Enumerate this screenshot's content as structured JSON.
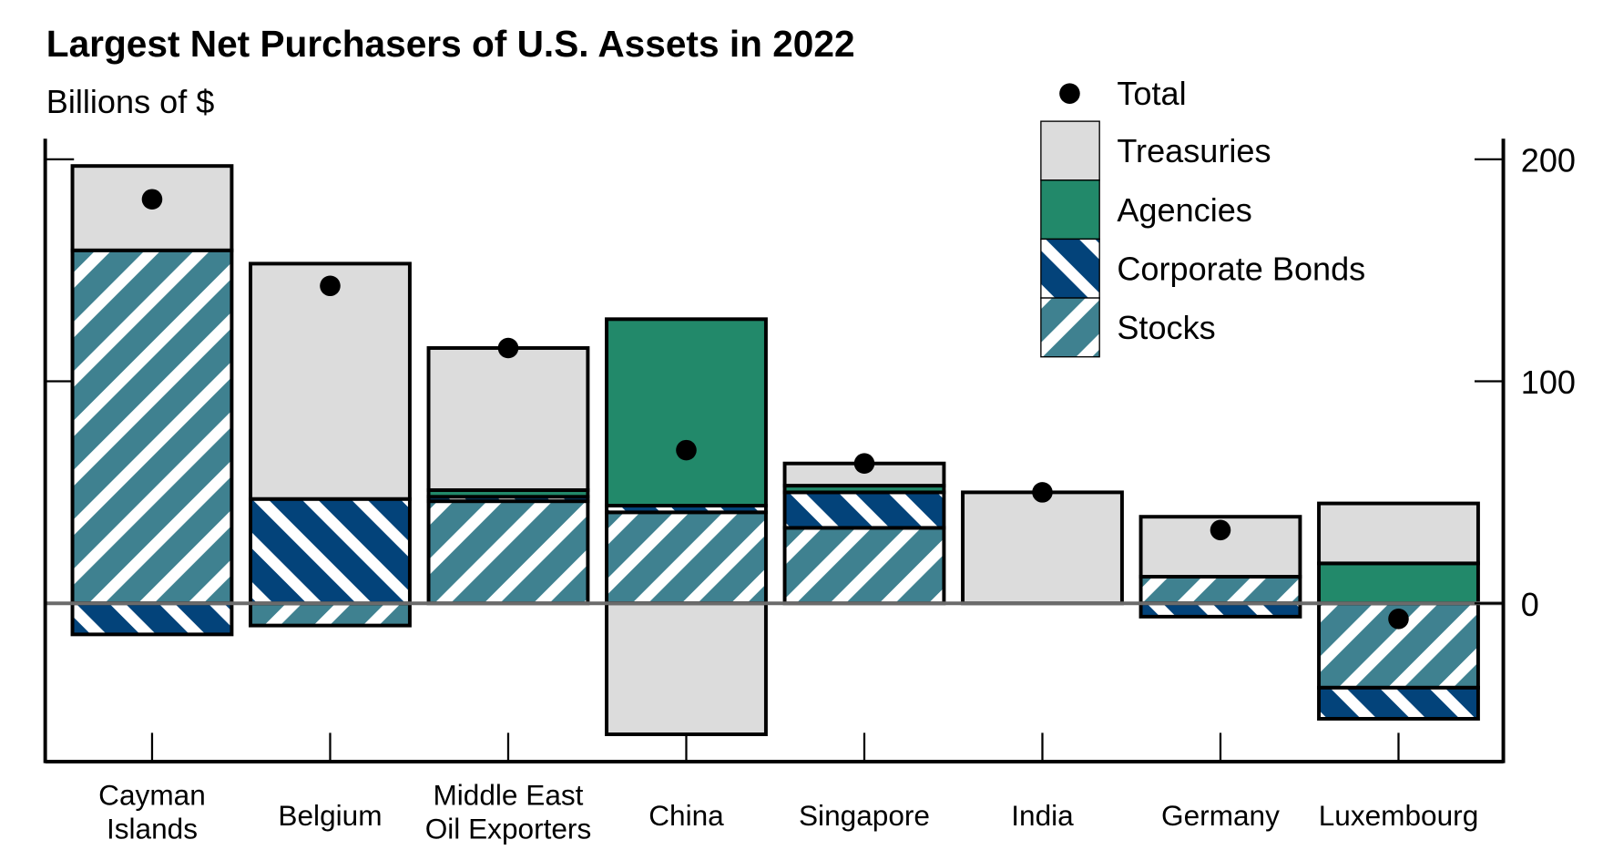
{
  "chart_data": {
    "type": "bar",
    "stacked": true,
    "title": "Largest Net Purchasers of U.S. Assets in 2022",
    "ylabel": "Billions of $",
    "ylim": [
      -70,
      210
    ],
    "yticks": [
      0,
      100,
      200
    ],
    "ytick_labels": [
      "0",
      "100",
      "200"
    ],
    "y_axis_side": "right",
    "grid": false,
    "legend_placement": "top-right",
    "categories": [
      [
        "Cayman",
        "Islands"
      ],
      [
        "Belgium"
      ],
      [
        "Middle East",
        "Oil Exporters"
      ],
      [
        "China"
      ],
      [
        "Singapore"
      ],
      [
        "India"
      ],
      [
        "Germany"
      ],
      [
        "Luxembourg"
      ]
    ],
    "series": [
      {
        "name": "Treasuries",
        "color": "#dcdcdc",
        "pattern": "solid",
        "values": [
          38,
          106,
          64,
          -59,
          10,
          50,
          27,
          27
        ]
      },
      {
        "name": "Agencies",
        "color": "#22896a",
        "pattern": "solid",
        "values": [
          0,
          0,
          3,
          84,
          3,
          0,
          0,
          18
        ]
      },
      {
        "name": "Corporate Bonds",
        "color": "#03437a",
        "pattern": "hatch-backslash",
        "values": [
          -14,
          47,
          2,
          3,
          16,
          0,
          -6,
          -14
        ]
      },
      {
        "name": "Stocks",
        "color": "#3f8190",
        "pattern": "hatch-slash",
        "values": [
          159,
          -10,
          46,
          41,
          34,
          0,
          12,
          -38
        ]
      }
    ],
    "total": {
      "name": "Total",
      "color": "#000000",
      "values": [
        182,
        143,
        115,
        69,
        63,
        50,
        33,
        -7
      ]
    }
  }
}
